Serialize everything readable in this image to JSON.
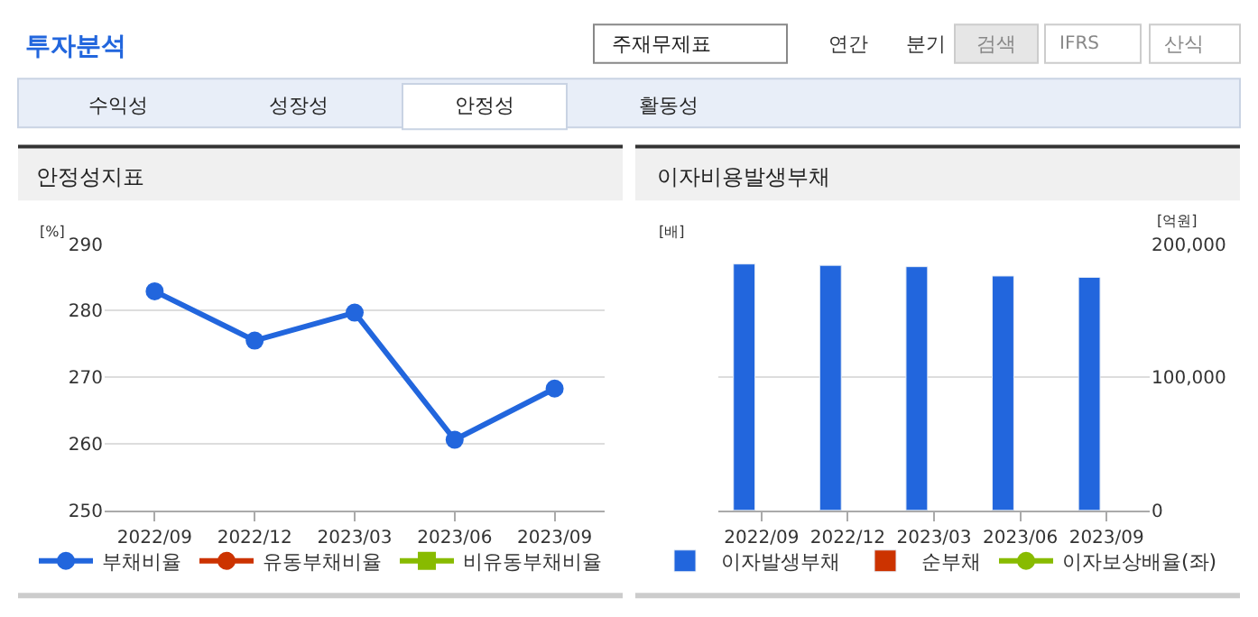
{
  "chart_data": [
    {
      "type": "line",
      "title": "안정성지표",
      "ylabel": "[%]",
      "annotations": [
        "투자분석",
        "주재무제표",
        "연간",
        "분기",
        "검색",
        "IFRS",
        "산식",
        "수익성",
        "성장성",
        "안정성",
        "활동성"
      ],
      "categories": [
        "2022/09",
        "2022/12",
        "2023/03",
        "2023/06",
        "2023/09"
      ],
      "series": [
        {
          "name": "부채비율",
          "color": "#2266dd",
          "values": [
            282.9,
            275.5,
            279.7,
            260.6,
            268.3
          ]
        },
        {
          "name": "유동부채비율",
          "color": "#cc3300",
          "values": [
            null,
            null,
            null,
            null,
            null
          ]
        },
        {
          "name": "비유동부채비율",
          "color": "#88bb00",
          "marker": "square",
          "values": [
            null,
            null,
            null,
            null,
            null
          ]
        }
      ],
      "ylim": [
        250,
        290
      ],
      "yticks": [
        250,
        260,
        270,
        280,
        290
      ],
      "grid": "y",
      "legend": "bottom",
      "marker": "circle"
    },
    {
      "type": "bar",
      "title": "이자비용발생부채",
      "ylabel": "[배]",
      "y2label": "[억원]",
      "categories": [
        "2022/09",
        "2022/12",
        "2023/03",
        "2023/06",
        "2023/09"
      ],
      "series": [
        {
          "name": "이자발생부채",
          "color": "#2266dd",
          "axis": "y2",
          "values": [
            185000,
            184000,
            183000,
            176000,
            175000
          ]
        },
        {
          "name": "순부채",
          "color": "#cc3300",
          "axis": "y2",
          "values": [
            null,
            null,
            null,
            null,
            null
          ]
        },
        {
          "name": "이자보상배율(좌)",
          "type": "line",
          "color": "#88bb00",
          "marker": "circle",
          "values": [
            null,
            null,
            null,
            null,
            null
          ]
        }
      ],
      "y2lim": [
        0,
        200000
      ],
      "y2ticks": [
        {
          "value": 0,
          "label": "0"
        },
        {
          "value": 100000,
          "label": "100,000"
        },
        {
          "value": 200000,
          "label": "200,000"
        }
      ],
      "grid": "y",
      "legend": "bottom"
    }
  ]
}
